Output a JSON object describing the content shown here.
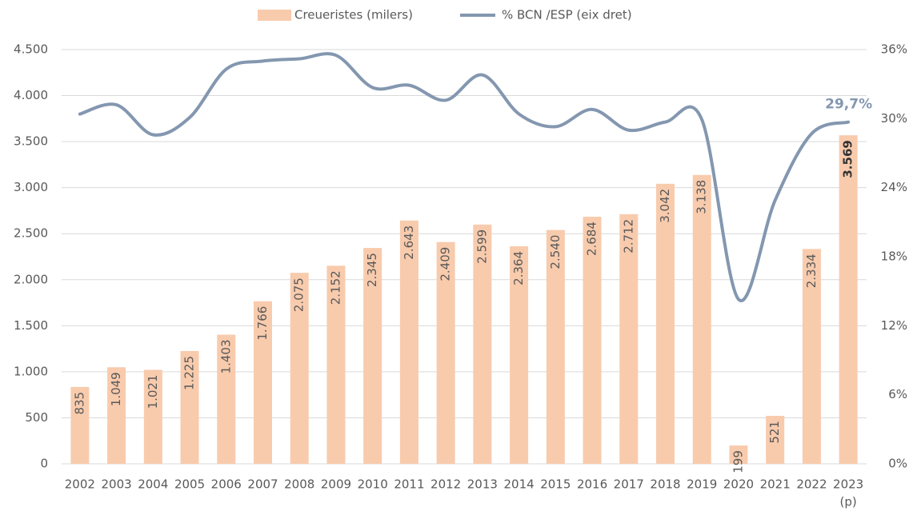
{
  "chart_data": {
    "type": "bar_line",
    "categories": [
      "2002",
      "2003",
      "2004",
      "2005",
      "2006",
      "2007",
      "2008",
      "2009",
      "2010",
      "2011",
      "2012",
      "2013",
      "2014",
      "2015",
      "2016",
      "2017",
      "2018",
      "2019",
      "2020",
      "2021",
      "2022",
      "2023"
    ],
    "category_note": "(p)",
    "series": [
      {
        "name": "Creueristes (milers)",
        "type": "bar",
        "color": "#f8cbad",
        "values": [
          835,
          1049,
          1021,
          1225,
          1403,
          1766,
          2075,
          2152,
          2345,
          2643,
          2409,
          2599,
          2364,
          2540,
          2684,
          2712,
          3042,
          3138,
          199,
          521,
          2334,
          3569
        ],
        "value_labels": [
          "835",
          "1.049",
          "1.021",
          "1.225",
          "1.403",
          "1.766",
          "2.075",
          "2.152",
          "2.345",
          "2.643",
          "2.409",
          "2.599",
          "2.364",
          "2.540",
          "2.684",
          "2.712",
          "3.042",
          "3.138",
          "199",
          "521",
          "2.334",
          "3.569"
        ]
      },
      {
        "name": "% BCN /ESP (eix dret)",
        "type": "line",
        "axis": "y2",
        "color": "#8497b0",
        "values": [
          30.4,
          31.2,
          28.6,
          30.1,
          34.3,
          35.0,
          35.2,
          35.5,
          32.7,
          32.9,
          31.6,
          33.8,
          30.4,
          29.3,
          30.8,
          29.0,
          29.7,
          29.9,
          14.3,
          22.9,
          28.7,
          29.7
        ],
        "end_label": "29,7%"
      }
    ],
    "ylim": [
      0,
      4500
    ],
    "yticks": [
      0,
      500,
      {
        "value": 1000,
        "label": "1.000"
      },
      {
        "value": 1500,
        "label": "1.500"
      },
      {
        "value": 2000,
        "label": "2.000"
      },
      {
        "value": 2500,
        "label": "2.500"
      },
      {
        "value": 3000,
        "label": "3.000"
      },
      {
        "value": 3500,
        "label": "3.500"
      },
      {
        "value": 4000,
        "label": "4.000"
      },
      {
        "value": 4500,
        "label": "4.500"
      }
    ],
    "y2lim": [
      0,
      36
    ],
    "y2ticks": [
      {
        "value": 0,
        "label": "0%"
      },
      {
        "value": 6,
        "label": "6%"
      },
      {
        "value": 12,
        "label": "12%"
      },
      {
        "value": 18,
        "label": "18%"
      },
      {
        "value": 24,
        "label": "24%"
      },
      {
        "value": 30,
        "label": "30%"
      },
      {
        "value": 36,
        "label": "36%"
      }
    ],
    "grid": true,
    "legend": "top"
  }
}
